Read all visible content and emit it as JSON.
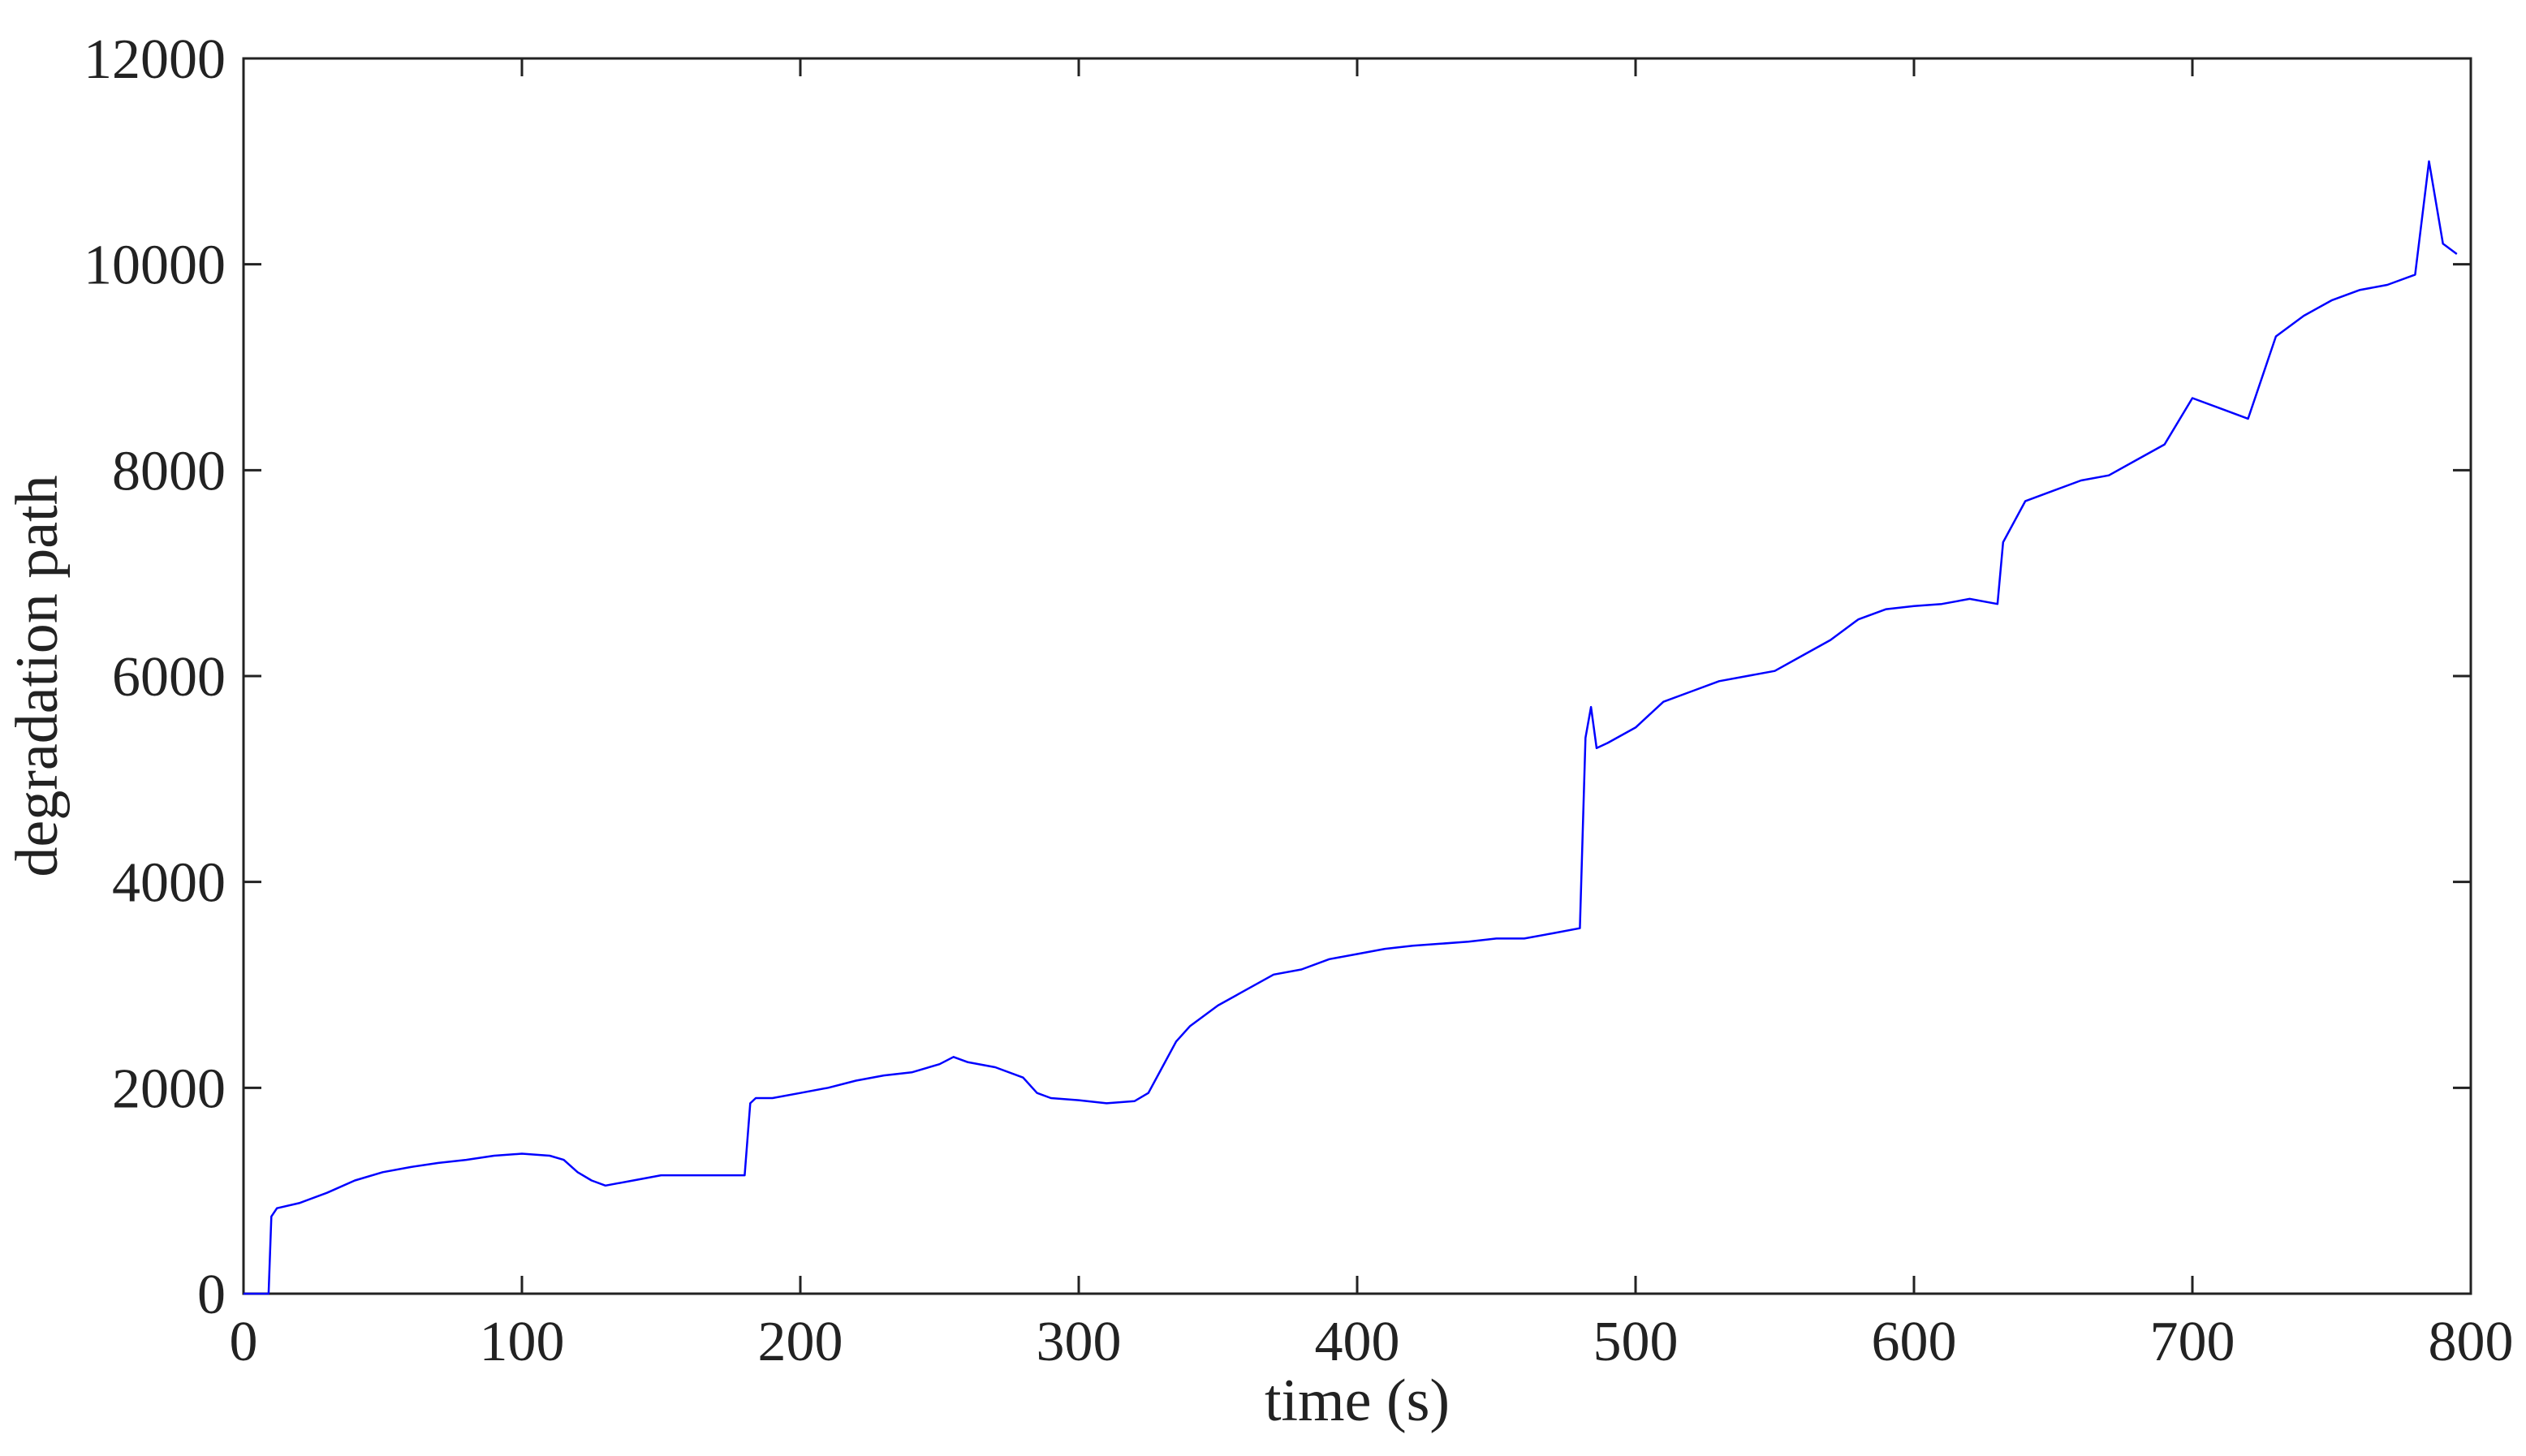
{
  "chart_data": {
    "type": "line",
    "title": "",
    "xlabel": "time (s)",
    "ylabel": "degradation path",
    "xlim": [
      0,
      800
    ],
    "ylim": [
      0,
      12000
    ],
    "xticks": [
      0,
      100,
      200,
      300,
      400,
      500,
      600,
      700,
      800
    ],
    "yticks": [
      0,
      2000,
      4000,
      6000,
      8000,
      10000,
      12000
    ],
    "grid": false,
    "legend": "none",
    "color": "#0000ff",
    "series": [
      {
        "x": [
          0,
          9,
          10,
          12,
          20,
          30,
          40,
          50,
          60,
          70,
          80,
          90,
          100,
          110,
          115,
          120,
          125,
          130,
          140,
          150,
          160,
          170,
          180,
          182,
          184,
          190,
          200,
          210,
          220,
          230,
          240,
          250,
          255,
          260,
          270,
          280,
          285,
          290,
          300,
          310,
          320,
          325,
          330,
          335,
          340,
          350,
          360,
          370,
          380,
          390,
          400,
          410,
          420,
          430,
          440,
          450,
          460,
          470,
          480,
          482,
          484,
          486,
          490,
          500,
          510,
          520,
          530,
          540,
          550,
          560,
          570,
          580,
          590,
          600,
          610,
          620,
          630,
          632,
          640,
          650,
          660,
          670,
          680,
          690,
          700,
          710,
          720,
          730,
          740,
          750,
          760,
          770,
          780,
          785,
          790,
          795
        ],
        "y": [
          0,
          0,
          750,
          830,
          880,
          980,
          1100,
          1180,
          1230,
          1270,
          1300,
          1340,
          1360,
          1340,
          1300,
          1180,
          1100,
          1050,
          1100,
          1150,
          1150,
          1150,
          1150,
          1850,
          1900,
          1900,
          1950,
          2000,
          2070,
          2120,
          2150,
          2230,
          2300,
          2250,
          2200,
          2100,
          1950,
          1900,
          1880,
          1850,
          1870,
          1950,
          2200,
          2450,
          2600,
          2800,
          2950,
          3100,
          3150,
          3250,
          3300,
          3350,
          3380,
          3400,
          3420,
          3450,
          3450,
          3500,
          3550,
          5400,
          5700,
          5300,
          5350,
          5500,
          5750,
          5850,
          5950,
          6000,
          6050,
          6200,
          6350,
          6550,
          6650,
          6680,
          6700,
          6750,
          6700,
          7300,
          7700,
          7800,
          7900,
          7950,
          8100,
          8250,
          8700,
          8600,
          8500,
          9300,
          9500,
          9650,
          9750,
          9800,
          9900,
          11000,
          10200,
          10100
        ]
      }
    ]
  }
}
